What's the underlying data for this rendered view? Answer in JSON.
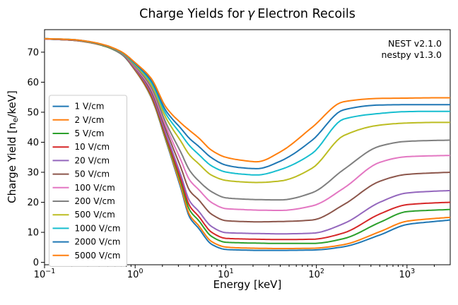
{
  "title": {
    "prefix": "Charge Yields for",
    "gamma": "γ",
    "suffix": "Electron Recoils"
  },
  "annotation": {
    "line1": "NEST v2.1.0",
    "line2": "nestpy v1.3.0"
  },
  "chart_data": {
    "type": "line",
    "title": "Charge Yields for γ Electron Recoils",
    "xlabel": "Energy [keV]",
    "ylabel": "Charge Yield [ne/keV]",
    "ylabel_parts": {
      "prefix": "Charge Yield [n",
      "sub": "e",
      "suffix": "/keV]"
    },
    "x_scale": "log",
    "xlim": [
      0.1,
      3000
    ],
    "ylim": [
      -0.8,
      77.5
    ],
    "grid": false,
    "legend_position": "center left",
    "x_major_ticks": [
      {
        "value": 0.1,
        "base": "10",
        "exp": "−1"
      },
      {
        "value": 1,
        "base": "10",
        "exp": "0"
      },
      {
        "value": 10,
        "base": "10",
        "exp": "1"
      },
      {
        "value": 100,
        "base": "10",
        "exp": "2"
      },
      {
        "value": 1000,
        "base": "10",
        "exp": "3"
      }
    ],
    "y_ticks": [
      0,
      10,
      20,
      30,
      40,
      50,
      60,
      70
    ],
    "x": [
      0.1,
      0.2,
      0.3,
      0.45,
      0.7,
      1.0,
      1.5,
      2.2,
      3.2,
      4.0,
      5.0,
      7.0,
      10,
      15,
      22,
      40,
      90,
      200,
      500,
      1000,
      2000,
      3000
    ],
    "series": [
      {
        "name": "1 V/cm",
        "color": "#1f77b4",
        "values": [
          74.4,
          74.0,
          73.3,
          72.1,
          69.4,
          63.9,
          55.0,
          40.2,
          24.6,
          15.0,
          11.4,
          6.0,
          4.3,
          4.1,
          4.0,
          4.0,
          4.1,
          5.2,
          9.1,
          12.6,
          13.6,
          14.1
        ]
      },
      {
        "name": "2 V/cm",
        "color": "#ff7f0e",
        "values": [
          74.4,
          74.0,
          73.3,
          72.1,
          69.5,
          64.0,
          55.2,
          40.6,
          25.3,
          15.8,
          12.3,
          6.9,
          5.1,
          4.8,
          4.7,
          4.6,
          4.7,
          5.9,
          10.2,
          13.7,
          14.6,
          15.0
        ]
      },
      {
        "name": "5 V/cm",
        "color": "#2ca02c",
        "values": [
          74.4,
          74.0,
          73.4,
          72.1,
          69.5,
          64.2,
          55.6,
          41.2,
          26.6,
          17.4,
          14.0,
          8.6,
          6.7,
          6.5,
          6.4,
          6.3,
          6.3,
          7.9,
          13.3,
          16.9,
          17.4,
          17.6
        ]
      },
      {
        "name": "10 V/cm",
        "color": "#d62728",
        "values": [
          74.4,
          74.0,
          73.4,
          72.2,
          69.6,
          64.3,
          55.9,
          41.8,
          27.6,
          18.8,
          15.4,
          10.0,
          8.0,
          7.8,
          7.7,
          7.6,
          7.7,
          9.8,
          16.1,
          19.2,
          19.8,
          20.0
        ]
      },
      {
        "name": "20 V/cm",
        "color": "#9467bd",
        "values": [
          74.4,
          74.1,
          73.4,
          72.2,
          69.6,
          64.5,
          56.4,
          42.6,
          29.0,
          20.4,
          17.1,
          11.9,
          9.9,
          9.7,
          9.6,
          9.5,
          9.7,
          12.9,
          20.0,
          23.1,
          23.7,
          23.9
        ]
      },
      {
        "name": "50 V/cm",
        "color": "#8c564b",
        "values": [
          74.4,
          74.1,
          73.4,
          72.2,
          69.7,
          64.8,
          57.1,
          43.9,
          31.5,
          23.9,
          20.9,
          16.0,
          13.9,
          13.6,
          13.5,
          13.6,
          14.1,
          19.2,
          27.0,
          29.3,
          29.8,
          30.0
        ]
      },
      {
        "name": "100 V/cm",
        "color": "#e377c2",
        "values": [
          74.4,
          74.1,
          73.5,
          72.3,
          69.8,
          65.0,
          57.8,
          45.1,
          34.0,
          27.4,
          24.3,
          19.9,
          17.9,
          17.6,
          17.4,
          17.3,
          18.8,
          24.7,
          33.3,
          35.2,
          35.5,
          35.6
        ]
      },
      {
        "name": "200 V/cm",
        "color": "#7f7f7f",
        "values": [
          74.5,
          74.1,
          73.5,
          72.3,
          69.8,
          65.3,
          58.4,
          46.3,
          36.6,
          30.6,
          27.2,
          23.5,
          21.5,
          21.1,
          20.9,
          20.8,
          23.2,
          30.9,
          38.7,
          40.3,
          40.6,
          40.7
        ]
      },
      {
        "name": "500 V/cm",
        "color": "#bcbd22",
        "values": [
          74.5,
          74.2,
          73.5,
          72.3,
          69.9,
          65.7,
          59.3,
          48.0,
          40.3,
          35.7,
          32.9,
          29.0,
          27.3,
          26.8,
          26.6,
          27.1,
          31.4,
          42.2,
          45.7,
          46.4,
          46.6,
          46.6
        ]
      },
      {
        "name": "1000 V/cm",
        "color": "#17becf",
        "values": [
          74.5,
          74.2,
          73.5,
          72.4,
          70.0,
          66.0,
          60.0,
          49.3,
          42.7,
          38.8,
          36.0,
          32.1,
          30.1,
          29.4,
          29.1,
          30.9,
          36.3,
          47.7,
          49.6,
          50.2,
          50.3,
          50.3
        ]
      },
      {
        "name": "2000 V/cm",
        "color": "#1f77b4",
        "values": [
          74.5,
          74.2,
          73.6,
          72.4,
          70.1,
          66.2,
          60.6,
          50.4,
          44.6,
          41.2,
          38.7,
          34.8,
          32.4,
          31.5,
          31.2,
          33.7,
          40.7,
          50.8,
          52.4,
          52.5,
          52.5,
          52.5
        ]
      },
      {
        "name": "5000 V/cm",
        "color": "#ff7f0e",
        "values": [
          74.5,
          74.2,
          73.6,
          72.5,
          70.2,
          66.5,
          61.3,
          51.6,
          46.4,
          43.9,
          41.5,
          37.3,
          35.0,
          34.0,
          33.5,
          36.8,
          45.0,
          53.5,
          54.6,
          54.7,
          54.8,
          54.8
        ]
      }
    ],
    "axis_color": "#000000",
    "legend_border_color": "#cccccc"
  }
}
